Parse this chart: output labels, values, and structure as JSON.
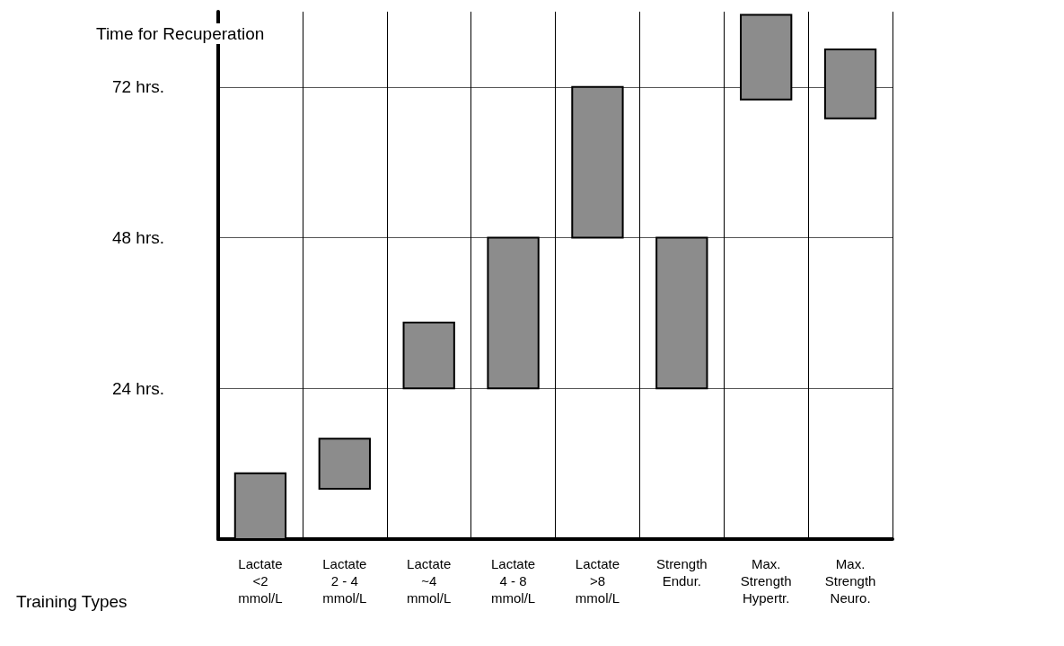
{
  "chart_data": {
    "type": "bar",
    "ylabel": "Time for Recuperation",
    "xlabel": "Training Types",
    "categories": [
      "Lactate\n<2\nmmol/L",
      "Lactate\n2 - 4\nmmol/L",
      "Lactate\n~4\nmmol/L",
      "Lactate\n4 - 8\nmmol/L",
      "Lactate\n>8\nmmol/L",
      "Strength\nEndur.",
      "Max.\nStrength\nHypertr.",
      "Max.\nStrength\nNeuro."
    ],
    "base": [
      0,
      8,
      24,
      24,
      48,
      24,
      70,
      67
    ],
    "values": [
      10.5,
      8,
      10.5,
      24,
      24,
      24,
      13.5,
      11
    ],
    "color": "#8c8c8c",
    "ylim": [
      0,
      84
    ],
    "yticks": [
      {
        "value": 24,
        "label": "24 hrs."
      },
      {
        "value": 48,
        "label": "48 hrs."
      },
      {
        "value": 72,
        "label": "72 hrs."
      }
    ],
    "grid": true
  }
}
